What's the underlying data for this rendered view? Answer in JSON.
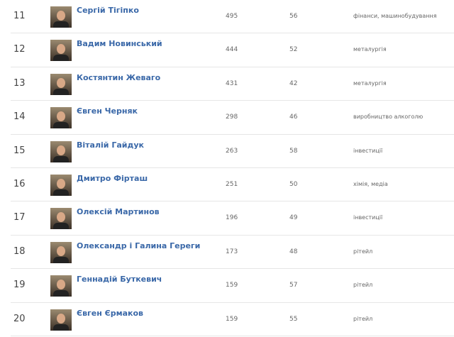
{
  "rows": [
    {
      "rank": "11",
      "name": "Сергій Тігіпко",
      "worth": "495",
      "age": "56",
      "industry": "фінанси, машинобудування"
    },
    {
      "rank": "12",
      "name": "Вадим Новинський",
      "worth": "444",
      "age": "52",
      "industry": "металургія"
    },
    {
      "rank": "13",
      "name": "Костянтин Жеваго",
      "worth": "431",
      "age": "42",
      "industry": "металургія"
    },
    {
      "rank": "14",
      "name": "Євген Черняк",
      "worth": "298",
      "age": "46",
      "industry": "виробництво алкоголю"
    },
    {
      "rank": "15",
      "name": "Віталій Гайдук",
      "worth": "263",
      "age": "58",
      "industry": "інвестиції"
    },
    {
      "rank": "16",
      "name": "Дмитро Фірташ",
      "worth": "251",
      "age": "50",
      "industry": "хімія, медіа"
    },
    {
      "rank": "17",
      "name": "Олексій Мартинов",
      "worth": "196",
      "age": "49",
      "industry": "інвестиції"
    },
    {
      "rank": "18",
      "name": "Олександр і Галина Гереги",
      "worth": "173",
      "age": "48",
      "industry": "рітейл"
    },
    {
      "rank": "19",
      "name": "Геннадій Буткевич",
      "worth": "159",
      "age": "57",
      "industry": "рітейл"
    },
    {
      "rank": "20",
      "name": "Євген Єрмаков",
      "worth": "159",
      "age": "55",
      "industry": "рітейл"
    }
  ]
}
